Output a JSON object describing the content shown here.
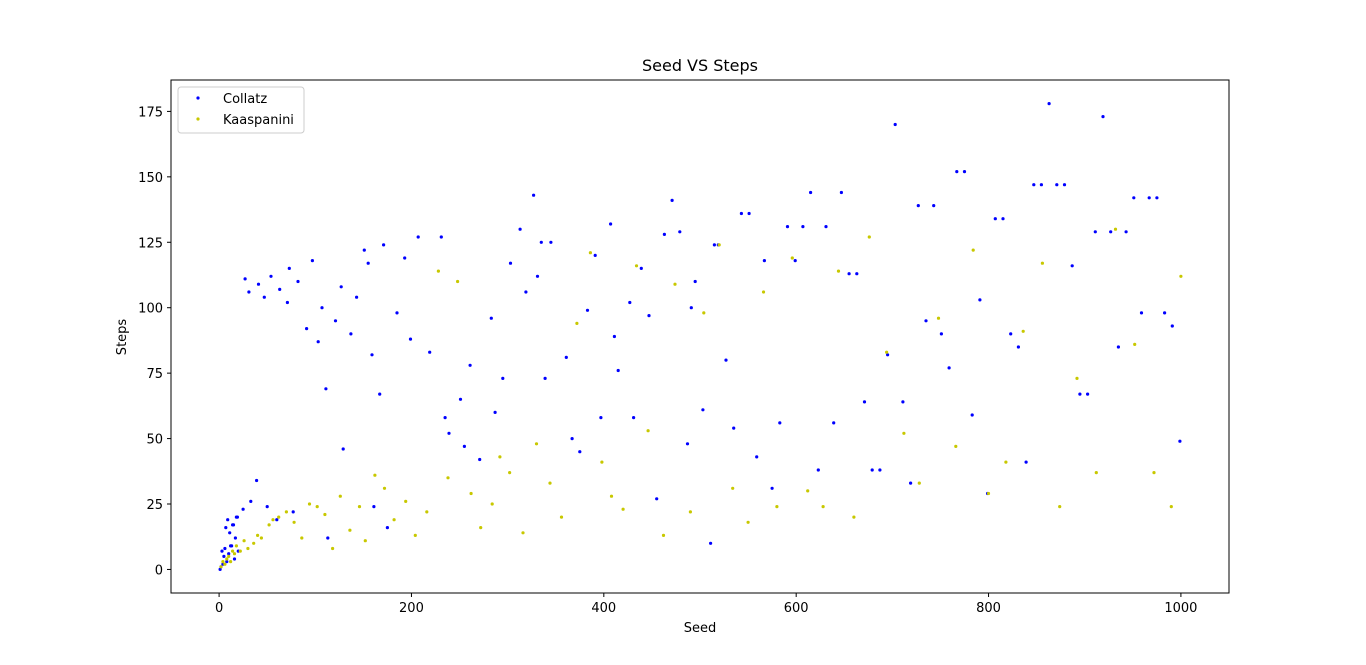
{
  "chart_data": {
    "type": "scatter",
    "title": "Seed VS Steps",
    "xlabel": "Seed",
    "ylabel": "Steps",
    "xlim": [
      -50,
      1050
    ],
    "ylim": [
      -9,
      187
    ],
    "xticks": [
      0,
      200,
      400,
      600,
      800,
      1000
    ],
    "yticks": [
      0,
      25,
      50,
      75,
      100,
      125,
      150,
      175
    ],
    "grid": false,
    "legend_position": "top-left",
    "series": [
      {
        "name": "Collatz",
        "color": "#0000ff",
        "x": [
          1,
          2,
          3,
          4,
          5,
          6,
          7,
          8,
          9,
          10,
          11,
          12,
          13,
          14,
          15,
          16,
          17,
          18,
          19,
          20,
          25,
          27,
          31,
          33,
          39,
          41,
          47,
          50,
          54,
          60,
          63,
          71,
          73,
          77,
          82,
          91,
          97,
          103,
          107,
          111,
          113,
          121,
          127,
          129,
          137,
          143,
          151,
          155,
          159,
          161,
          167,
          171,
          175,
          185,
          193,
          199,
          207,
          219,
          231,
          235,
          239,
          251,
          255,
          261,
          271,
          283,
          287,
          295,
          303,
          313,
          319,
          327,
          331,
          335,
          339,
          345,
          361,
          367,
          375,
          383,
          391,
          397,
          407,
          411,
          415,
          427,
          431,
          439,
          447,
          455,
          463,
          471,
          479,
          487,
          491,
          495,
          503,
          511,
          515,
          519,
          527,
          535,
          543,
          551,
          559,
          567,
          575,
          583,
          591,
          599,
          607,
          615,
          623,
          631,
          639,
          647,
          655,
          663,
          671,
          679,
          687,
          695,
          703,
          711,
          719,
          727,
          735,
          743,
          751,
          759,
          767,
          775,
          783,
          791,
          799,
          807,
          815,
          823,
          831,
          839,
          847,
          855,
          863,
          871,
          879,
          887,
          895,
          903,
          911,
          919,
          927,
          935,
          943,
          951,
          959,
          967,
          975,
          983,
          991,
          999
        ],
        "y": [
          0,
          1,
          7,
          2,
          5,
          8,
          16,
          3,
          19,
          6,
          14,
          9,
          9,
          17,
          17,
          4,
          12,
          20,
          20,
          7,
          23,
          111,
          106,
          26,
          34,
          109,
          104,
          24,
          112,
          19,
          107,
          102,
          115,
          22,
          110,
          92,
          118,
          87,
          100,
          69,
          12,
          95,
          108,
          46,
          90,
          104,
          122,
          117,
          82,
          24,
          67,
          124,
          16,
          98,
          119,
          88,
          127,
          83,
          127,
          58,
          52,
          65,
          47,
          78,
          42,
          96,
          60,
          73,
          117,
          130,
          106,
          143,
          112,
          125,
          73,
          125,
          81,
          50,
          45,
          99,
          120,
          58,
          132,
          89,
          76,
          102,
          58,
          115,
          97,
          27,
          128,
          141,
          129,
          48,
          100,
          110,
          61,
          10,
          124,
          124,
          80,
          54,
          136,
          136,
          43,
          118,
          31,
          56,
          131,
          118,
          131,
          144,
          38,
          131,
          56,
          144,
          113,
          113,
          64,
          38,
          38,
          82,
          170,
          64,
          33,
          139,
          95,
          139,
          90,
          77,
          152,
          152,
          59,
          103,
          29,
          134,
          134,
          90,
          85,
          41,
          147,
          147,
          178,
          147,
          147,
          116,
          67,
          67,
          129,
          173,
          129,
          85,
          129,
          142,
          98,
          142,
          142,
          98,
          93,
          49
        ]
      },
      {
        "name": "Kaaspanini",
        "color": "#c8c800",
        "x": [
          2,
          4,
          6,
          8,
          10,
          12,
          14,
          16,
          18,
          22,
          26,
          30,
          36,
          40,
          44,
          52,
          56,
          62,
          70,
          78,
          86,
          94,
          102,
          110,
          118,
          126,
          136,
          146,
          152,
          162,
          172,
          182,
          194,
          204,
          216,
          228,
          238,
          248,
          262,
          272,
          284,
          292,
          302,
          316,
          330,
          344,
          356,
          372,
          386,
          398,
          408,
          420,
          434,
          446,
          462,
          474,
          490,
          504,
          520,
          534,
          550,
          566,
          580,
          596,
          612,
          628,
          644,
          660,
          676,
          694,
          712,
          728,
          748,
          766,
          784,
          800,
          818,
          836,
          856,
          874,
          892,
          912,
          932,
          952,
          972,
          990,
          1000
        ],
        "y": [
          1,
          3,
          2,
          4,
          5,
          3,
          7,
          6,
          9,
          7,
          11,
          8,
          10,
          13,
          12,
          17,
          19,
          20,
          22,
          18,
          12,
          25,
          24,
          21,
          8,
          28,
          15,
          24,
          11,
          36,
          31,
          19,
          26,
          13,
          22,
          114,
          35,
          110,
          29,
          16,
          25,
          43,
          37,
          14,
          48,
          33,
          20,
          94,
          121,
          41,
          28,
          23,
          116,
          53,
          13,
          109,
          22,
          98,
          124,
          31,
          18,
          106,
          24,
          119,
          30,
          24,
          114,
          20,
          127,
          83,
          52,
          33,
          96,
          47,
          122,
          29,
          41,
          91,
          117,
          24,
          73,
          37,
          130,
          86,
          37,
          24,
          112
        ]
      }
    ]
  }
}
